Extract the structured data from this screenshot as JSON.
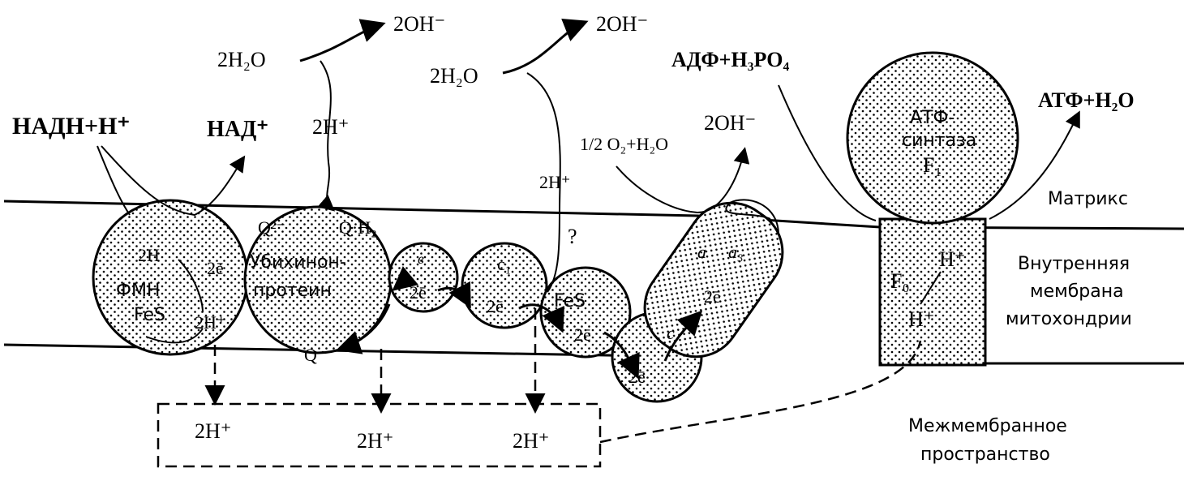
{
  "labels": [
    "НАДН+Н⁺",
    "НАД⁺",
    "2H₂O",
    "2OH⁻",
    "2H⁺",
    "2H₂O",
    "2OH⁻",
    "АДФ+Н₃РО₄",
    "АТФ+Н₂О",
    "1/2 O₂+H₂O",
    "2OH⁻",
    "2H⁺",
    "?",
    "Матрикс",
    "Внутренняя",
    "мембрана",
    "митохондрии",
    "Q²⁻",
    "Q·H₂",
    "2H",
    "2ē",
    "ФМН",
    "FeS",
    "2H⁺",
    "Убихинон-",
    "протеин",
    "Q",
    "в",
    "2ē",
    "c₁",
    "2ē",
    "FeS",
    "2ē",
    "c",
    "2ē",
    "a",
    "a₃",
    "2ē",
    "АТФ-",
    "синтаза",
    "F₁",
    "F₀",
    "H⁺",
    "H⁺",
    "2H⁺",
    "2H⁺",
    "2H⁺",
    "Межмембранное",
    "пространство"
  ]
}
